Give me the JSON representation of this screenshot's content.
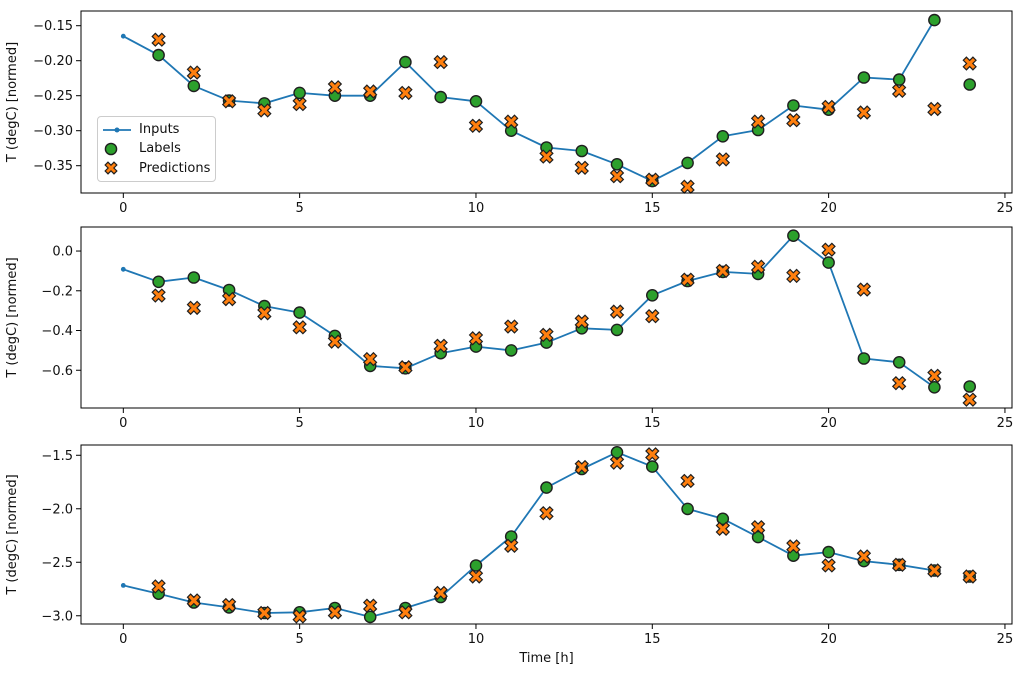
{
  "figure": {
    "xlabel": "Time [h]",
    "ylabel": "T (degC) [normed]"
  },
  "legend": {
    "visible": true,
    "position": "upper-left-inside-first-subplot",
    "entries": [
      "Inputs",
      "Labels",
      "Predictions"
    ]
  },
  "colors": {
    "inputs_line": "#1f77b4",
    "labels_fill": "#2ca02c",
    "predictions_fill": "#ff7f0e",
    "marker_edge": "#1f1f1f",
    "spine": "#000000",
    "text": "#111111"
  },
  "chart_data": [
    {
      "type": "line",
      "title": "",
      "xlabel": "",
      "ylabel": "T (degC) [normed]",
      "grid": false,
      "xlim": [
        -1.2,
        25.2
      ],
      "ylim": [
        -0.389,
        -0.129
      ],
      "xticks": {
        "values": [
          0,
          5,
          10,
          15,
          20,
          25
        ],
        "labels": [
          "0",
          "5",
          "10",
          "15",
          "20",
          "25"
        ]
      },
      "yticks": {
        "values": [
          -0.15,
          -0.2,
          -0.25,
          -0.3,
          -0.35
        ],
        "labels": [
          "−0.15",
          "−0.20",
          "−0.25",
          "−0.30",
          "−0.35"
        ]
      },
      "series": [
        {
          "name": "Inputs",
          "kind": "line-dot",
          "x": [
            0,
            1,
            2,
            3,
            4,
            5,
            6,
            7,
            8,
            9,
            10,
            11,
            12,
            13,
            14,
            15,
            16,
            17,
            18,
            19,
            20,
            21,
            22,
            23
          ],
          "y": [
            -0.165,
            -0.192,
            -0.236,
            -0.257,
            -0.261,
            -0.246,
            -0.25,
            -0.25,
            -0.202,
            -0.252,
            -0.258,
            -0.3,
            -0.324,
            -0.329,
            -0.348,
            -0.372,
            -0.346,
            -0.308,
            -0.299,
            -0.264,
            -0.27,
            -0.224,
            -0.227,
            -0.142
          ]
        },
        {
          "name": "Labels",
          "kind": "scatter-circle",
          "x": [
            1,
            2,
            3,
            4,
            5,
            6,
            7,
            8,
            9,
            10,
            11,
            12,
            13,
            14,
            15,
            16,
            17,
            18,
            19,
            20,
            21,
            22,
            23,
            24
          ],
          "y": [
            -0.192,
            -0.236,
            -0.257,
            -0.261,
            -0.246,
            -0.25,
            -0.25,
            -0.202,
            -0.252,
            -0.258,
            -0.3,
            -0.324,
            -0.329,
            -0.348,
            -0.372,
            -0.346,
            -0.308,
            -0.299,
            -0.264,
            -0.27,
            -0.224,
            -0.227,
            -0.142,
            -0.234
          ]
        },
        {
          "name": "Predictions",
          "kind": "scatter-x",
          "x": [
            1,
            2,
            3,
            4,
            5,
            6,
            7,
            8,
            9,
            10,
            11,
            12,
            13,
            14,
            15,
            16,
            17,
            18,
            19,
            20,
            21,
            22,
            23,
            24
          ],
          "y": [
            -0.17,
            -0.217,
            -0.258,
            -0.271,
            -0.262,
            -0.238,
            -0.244,
            -0.246,
            -0.202,
            -0.293,
            -0.287,
            -0.337,
            -0.353,
            -0.365,
            -0.37,
            -0.38,
            -0.341,
            -0.287,
            -0.285,
            -0.266,
            -0.274,
            -0.243,
            -0.269,
            -0.204
          ]
        }
      ]
    },
    {
      "type": "line",
      "title": "",
      "xlabel": "",
      "ylabel": "T (degC) [normed]",
      "grid": false,
      "xlim": [
        -1.2,
        25.2
      ],
      "ylim": [
        -0.79,
        0.121
      ],
      "xticks": {
        "values": [
          0,
          5,
          10,
          15,
          20,
          25
        ],
        "labels": [
          "0",
          "5",
          "10",
          "15",
          "20",
          "25"
        ]
      },
      "yticks": {
        "values": [
          0.0,
          -0.2,
          -0.4,
          -0.6
        ],
        "labels": [
          "0.0",
          "−0.2",
          "−0.4",
          "−0.6"
        ]
      },
      "series": [
        {
          "name": "Inputs",
          "kind": "line-dot",
          "x": [
            0,
            1,
            2,
            3,
            4,
            5,
            6,
            7,
            8,
            9,
            10,
            11,
            12,
            13,
            14,
            15,
            16,
            17,
            18,
            19,
            20,
            21,
            22,
            23
          ],
          "y": [
            -0.092,
            -0.155,
            -0.133,
            -0.196,
            -0.277,
            -0.31,
            -0.427,
            -0.578,
            -0.59,
            -0.514,
            -0.481,
            -0.5,
            -0.461,
            -0.389,
            -0.397,
            -0.223,
            -0.151,
            -0.105,
            -0.115,
            0.077,
            -0.058,
            -0.541,
            -0.56,
            -0.686
          ]
        },
        {
          "name": "Labels",
          "kind": "scatter-circle",
          "x": [
            1,
            2,
            3,
            4,
            5,
            6,
            7,
            8,
            9,
            10,
            11,
            12,
            13,
            14,
            15,
            16,
            17,
            18,
            19,
            20,
            21,
            22,
            23,
            24
          ],
          "y": [
            -0.155,
            -0.133,
            -0.196,
            -0.277,
            -0.31,
            -0.427,
            -0.578,
            -0.59,
            -0.514,
            -0.481,
            -0.5,
            -0.461,
            -0.389,
            -0.397,
            -0.223,
            -0.151,
            -0.105,
            -0.115,
            0.077,
            -0.058,
            -0.541,
            -0.56,
            -0.686,
            -0.682
          ]
        },
        {
          "name": "Predictions",
          "kind": "scatter-x",
          "x": [
            1,
            2,
            3,
            4,
            5,
            6,
            7,
            8,
            9,
            10,
            11,
            12,
            13,
            14,
            15,
            16,
            17,
            18,
            19,
            20,
            21,
            22,
            23,
            24
          ],
          "y": [
            -0.224,
            -0.286,
            -0.242,
            -0.313,
            -0.384,
            -0.456,
            -0.544,
            -0.585,
            -0.477,
            -0.439,
            -0.38,
            -0.422,
            -0.355,
            -0.305,
            -0.328,
            -0.144,
            -0.1,
            -0.079,
            -0.125,
            0.007,
            -0.194,
            -0.665,
            -0.628,
            -0.748
          ]
        }
      ]
    },
    {
      "type": "line",
      "title": "",
      "xlabel": "Time [h]",
      "ylabel": "T (degC) [normed]",
      "grid": false,
      "xlim": [
        -1.2,
        25.2
      ],
      "ylim": [
        -3.077,
        -1.404
      ],
      "xticks": {
        "values": [
          0,
          5,
          10,
          15,
          20,
          25
        ],
        "labels": [
          "0",
          "5",
          "10",
          "15",
          "20",
          "25"
        ]
      },
      "yticks": {
        "values": [
          -1.5,
          -2.0,
          -2.5,
          -3.0
        ],
        "labels": [
          "−1.5",
          "−2.0",
          "−2.5",
          "−3.0"
        ]
      },
      "series": [
        {
          "name": "Inputs",
          "kind": "line-dot",
          "x": [
            0,
            1,
            2,
            3,
            4,
            5,
            6,
            7,
            8,
            9,
            10,
            11,
            12,
            13,
            14,
            15,
            16,
            17,
            18,
            19,
            20,
            21,
            22,
            23
          ],
          "y": [
            -2.716,
            -2.794,
            -2.876,
            -2.922,
            -2.974,
            -2.968,
            -2.927,
            -3.011,
            -2.927,
            -2.825,
            -2.53,
            -2.259,
            -1.802,
            -1.628,
            -1.472,
            -1.606,
            -2.001,
            -2.094,
            -2.265,
            -2.439,
            -2.405,
            -2.489,
            -2.524,
            -2.577
          ]
        },
        {
          "name": "Labels",
          "kind": "scatter-circle",
          "x": [
            1,
            2,
            3,
            4,
            5,
            6,
            7,
            8,
            9,
            10,
            11,
            12,
            13,
            14,
            15,
            16,
            17,
            18,
            19,
            20,
            21,
            22,
            23,
            24
          ],
          "y": [
            -2.794,
            -2.876,
            -2.922,
            -2.974,
            -2.968,
            -2.927,
            -3.011,
            -2.927,
            -2.825,
            -2.53,
            -2.259,
            -1.802,
            -1.628,
            -1.472,
            -1.606,
            -2.001,
            -2.094,
            -2.265,
            -2.439,
            -2.405,
            -2.489,
            -2.524,
            -2.577,
            -2.633
          ]
        },
        {
          "name": "Predictions",
          "kind": "scatter-x",
          "x": [
            1,
            2,
            3,
            4,
            5,
            6,
            7,
            8,
            9,
            10,
            11,
            12,
            13,
            14,
            15,
            16,
            17,
            18,
            19,
            20,
            21,
            22,
            23,
            24
          ],
          "y": [
            -2.726,
            -2.857,
            -2.9,
            -2.974,
            -3.006,
            -2.968,
            -2.906,
            -2.968,
            -2.787,
            -2.633,
            -2.346,
            -2.041,
            -1.61,
            -1.569,
            -1.491,
            -1.74,
            -2.187,
            -2.172,
            -2.352,
            -2.53,
            -2.446,
            -2.524,
            -2.577,
            -2.633
          ]
        }
      ]
    }
  ]
}
